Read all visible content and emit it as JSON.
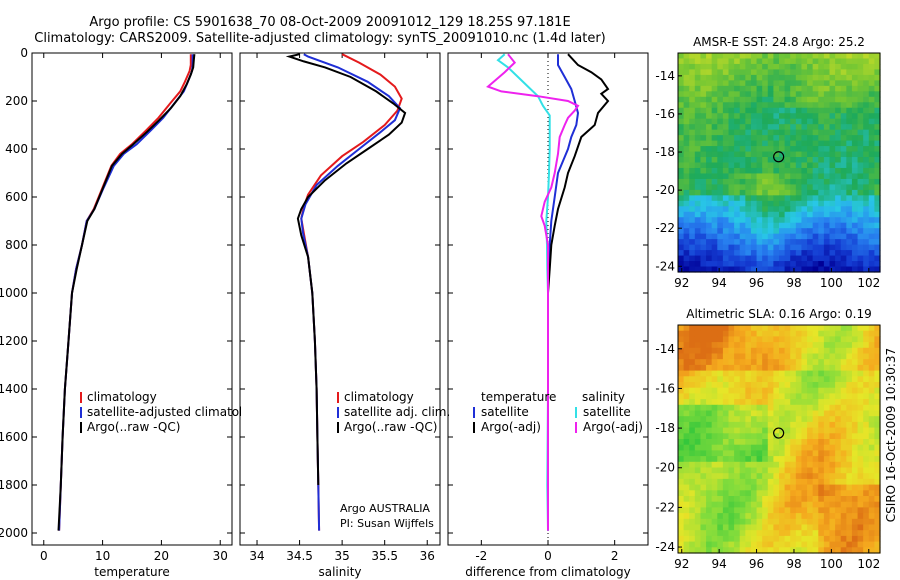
{
  "figure": {
    "title_line1": "Argo profile: CS 5901638_70 08-Oct-2009 20091012_129 18.25S 97.181E",
    "title_line2": "Climatology: CARS2009. Satellite-adjusted climatology: synTS_20091010.nc (1.4d later)",
    "credit": "CSIRO 16-Oct-2009 10:30:37",
    "attribution_line1": "Argo AUSTRALIA",
    "attribution_line2": "PI: Susan Wijffels"
  },
  "colors": {
    "climatology": "#e41a1c",
    "satellite": "#1f2fd6",
    "argo": "#000000",
    "satellite_salinity": "#33e0e6",
    "argo_salinity": "#ee22ee"
  },
  "chart_data": [
    {
      "id": "temperature",
      "type": "line",
      "xlabel": "temperature",
      "xlim": [
        -2,
        32
      ],
      "ylim": [
        0,
        2050
      ],
      "y_reversed": true,
      "xticks": [
        0,
        10,
        20,
        30
      ],
      "yticks": [
        0,
        200,
        400,
        600,
        800,
        1000,
        1200,
        1400,
        1600,
        1800,
        2000
      ],
      "legend": [
        "climatology",
        "satellite-adjusted climatology",
        "Argo(..raw -QC)"
      ],
      "series": [
        {
          "name": "climatology",
          "color": "#e41a1c",
          "points": [
            [
              25.0,
              5
            ],
            [
              25.0,
              50
            ],
            [
              24.8,
              75
            ],
            [
              24.0,
              120
            ],
            [
              23.2,
              160
            ],
            [
              21.5,
              210
            ],
            [
              19.5,
              270
            ],
            [
              17.5,
              320
            ],
            [
              15.0,
              380
            ],
            [
              13.0,
              420
            ],
            [
              11.5,
              470
            ],
            [
              10.0,
              560
            ],
            [
              8.5,
              650
            ],
            [
              7.3,
              700
            ],
            [
              6.5,
              800
            ],
            [
              5.5,
              900
            ],
            [
              4.8,
              1000
            ],
            [
              4.2,
              1200
            ],
            [
              3.6,
              1400
            ],
            [
              3.2,
              1600
            ],
            [
              2.9,
              1800
            ],
            [
              2.6,
              1990
            ]
          ]
        },
        {
          "name": "satellite-adjusted climatology",
          "color": "#1f2fd6",
          "points": [
            [
              25.3,
              5
            ],
            [
              25.3,
              50
            ],
            [
              25.2,
              75
            ],
            [
              24.5,
              120
            ],
            [
              23.8,
              160
            ],
            [
              22.2,
              210
            ],
            [
              20.3,
              270
            ],
            [
              18.3,
              320
            ],
            [
              15.8,
              380
            ],
            [
              13.6,
              420
            ],
            [
              11.9,
              470
            ],
            [
              10.2,
              560
            ],
            [
              8.6,
              650
            ],
            [
              7.3,
              700
            ],
            [
              6.5,
              800
            ],
            [
              5.5,
              900
            ],
            [
              4.8,
              1000
            ],
            [
              4.2,
              1200
            ],
            [
              3.6,
              1400
            ],
            [
              3.2,
              1600
            ],
            [
              2.9,
              1800
            ],
            [
              2.6,
              1990
            ]
          ]
        },
        {
          "name": "Argo(..raw -QC)",
          "color": "#000000",
          "points": [
            [
              25.6,
              5
            ],
            [
              25.5,
              30
            ],
            [
              25.4,
              60
            ],
            [
              25.0,
              90
            ],
            [
              24.3,
              130
            ],
            [
              23.2,
              180
            ],
            [
              21.6,
              230
            ],
            [
              19.6,
              280
            ],
            [
              17.5,
              330
            ],
            [
              15.0,
              385
            ],
            [
              13.3,
              420
            ],
            [
              11.6,
              470
            ],
            [
              10.1,
              560
            ],
            [
              8.6,
              650
            ],
            [
              7.4,
              700
            ],
            [
              6.5,
              800
            ],
            [
              5.6,
              900
            ],
            [
              4.8,
              1000
            ],
            [
              4.2,
              1200
            ],
            [
              3.6,
              1400
            ],
            [
              3.2,
              1600
            ],
            [
              2.9,
              1800
            ],
            [
              2.5,
              1990
            ]
          ]
        }
      ]
    },
    {
      "id": "salinity",
      "type": "line",
      "xlabel": "salinity",
      "xlim": [
        33.8,
        36.15
      ],
      "ylim": [
        0,
        2050
      ],
      "y_reversed": true,
      "xticks": [
        34,
        34.5,
        35,
        35.5,
        36
      ],
      "legend": [
        "climatology",
        "satellite adj. clim.",
        "Argo(..raw -QC)"
      ],
      "series": [
        {
          "name": "climatology",
          "color": "#e41a1c",
          "points": [
            [
              35.0,
              5
            ],
            [
              35.2,
              40
            ],
            [
              35.45,
              90
            ],
            [
              35.62,
              140
            ],
            [
              35.7,
              190
            ],
            [
              35.65,
              240
            ],
            [
              35.5,
              300
            ],
            [
              35.25,
              370
            ],
            [
              35.0,
              430
            ],
            [
              34.75,
              510
            ],
            [
              34.6,
              590
            ],
            [
              34.55,
              640
            ],
            [
              34.52,
              690
            ],
            [
              34.55,
              750
            ],
            [
              34.6,
              850
            ],
            [
              34.65,
              1000
            ],
            [
              34.68,
              1200
            ],
            [
              34.7,
              1400
            ],
            [
              34.71,
              1600
            ],
            [
              34.72,
              1800
            ],
            [
              34.73,
              1990
            ]
          ]
        },
        {
          "name": "satellite adj. clim.",
          "color": "#1f2fd6",
          "points": [
            [
              34.55,
              5
            ],
            [
              34.6,
              15
            ],
            [
              34.95,
              60
            ],
            [
              35.3,
              120
            ],
            [
              35.55,
              180
            ],
            [
              35.68,
              230
            ],
            [
              35.62,
              280
            ],
            [
              35.45,
              330
            ],
            [
              35.2,
              400
            ],
            [
              34.95,
              470
            ],
            [
              34.7,
              550
            ],
            [
              34.57,
              630
            ],
            [
              34.52,
              690
            ],
            [
              34.54,
              750
            ],
            [
              34.6,
              850
            ],
            [
              34.65,
              1000
            ],
            [
              34.68,
              1200
            ],
            [
              34.7,
              1400
            ],
            [
              34.71,
              1600
            ],
            [
              34.72,
              1800
            ],
            [
              34.73,
              1990
            ]
          ]
        },
        {
          "name": "Argo(..raw -QC)",
          "color": "#000000",
          "points": [
            [
              34.5,
              5
            ],
            [
              34.38,
              15
            ],
            [
              34.55,
              35
            ],
            [
              34.8,
              60
            ],
            [
              35.1,
              100
            ],
            [
              35.4,
              160
            ],
            [
              35.6,
              210
            ],
            [
              35.74,
              250
            ],
            [
              35.7,
              290
            ],
            [
              35.55,
              340
            ],
            [
              35.3,
              400
            ],
            [
              35.05,
              460
            ],
            [
              34.8,
              530
            ],
            [
              34.6,
              600
            ],
            [
              34.52,
              650
            ],
            [
              34.48,
              690
            ],
            [
              34.52,
              760
            ],
            [
              34.6,
              850
            ],
            [
              34.65,
              1000
            ],
            [
              34.68,
              1200
            ],
            [
              34.7,
              1400
            ],
            [
              34.71,
              1600
            ],
            [
              34.72,
              1800
            ]
          ]
        }
      ]
    },
    {
      "id": "difference",
      "type": "line",
      "xlabel": "difference from climatology",
      "xlim": [
        -3.0,
        3.0
      ],
      "ylim": [
        0,
        2050
      ],
      "y_reversed": true,
      "xticks": [
        -2,
        0,
        2
      ],
      "zero_line": 0,
      "legend_groups": [
        {
          "title": "temperature",
          "entries": [
            "satellite",
            "Argo(-adj)"
          ]
        },
        {
          "title": "salinity",
          "entries": [
            "satellite",
            "Argo(-adj)"
          ]
        }
      ],
      "series": [
        {
          "name": "satellite",
          "group": "temperature",
          "color": "#1f2fd6",
          "points": [
            [
              0.3,
              5
            ],
            [
              0.3,
              50
            ],
            [
              0.5,
              100
            ],
            [
              0.7,
              150
            ],
            [
              0.8,
              200
            ],
            [
              0.9,
              250
            ],
            [
              0.85,
              300
            ],
            [
              0.7,
              350
            ],
            [
              0.6,
              400
            ],
            [
              0.45,
              450
            ],
            [
              0.3,
              500
            ],
            [
              0.2,
              600
            ],
            [
              0.1,
              700
            ],
            [
              0.05,
              800
            ],
            [
              0.0,
              900
            ],
            [
              0.0,
              1000
            ],
            [
              0.0,
              1400
            ],
            [
              0.0,
              1800
            ],
            [
              0.0,
              1990
            ]
          ]
        },
        {
          "name": "Argo(-adj)",
          "group": "temperature",
          "color": "#000000",
          "points": [
            [
              0.6,
              5
            ],
            [
              0.9,
              50
            ],
            [
              1.3,
              80
            ],
            [
              1.6,
              110
            ],
            [
              1.8,
              150
            ],
            [
              1.6,
              170
            ],
            [
              1.8,
              200
            ],
            [
              1.5,
              250
            ],
            [
              1.4,
              300
            ],
            [
              1.0,
              350
            ],
            [
              0.8,
              430
            ],
            [
              0.6,
              500
            ],
            [
              0.5,
              560
            ],
            [
              0.3,
              650
            ],
            [
              0.2,
              720
            ],
            [
              0.1,
              800
            ],
            [
              0.05,
              900
            ],
            [
              0.0,
              1000
            ],
            [
              0.0,
              1400
            ],
            [
              0.0,
              1800
            ],
            [
              0.0,
              1990
            ]
          ]
        },
        {
          "name": "satellite",
          "group": "salinity",
          "color": "#33e0e6",
          "points": [
            [
              -1.3,
              5
            ],
            [
              -1.5,
              30
            ],
            [
              -1.2,
              60
            ],
            [
              -0.9,
              100
            ],
            [
              -0.6,
              140
            ],
            [
              -0.3,
              180
            ],
            [
              -0.15,
              220
            ],
            [
              0.05,
              260
            ],
            [
              0.05,
              300
            ],
            [
              0.05,
              400
            ],
            [
              0.03,
              500
            ],
            [
              0.0,
              600
            ],
            [
              -0.05,
              700
            ],
            [
              -0.03,
              800
            ],
            [
              -0.02,
              900
            ],
            [
              0.0,
              1000
            ],
            [
              0.0,
              1400
            ],
            [
              -0.02,
              1800
            ],
            [
              0.0,
              1990
            ]
          ]
        },
        {
          "name": "Argo(-adj)",
          "group": "salinity",
          "color": "#ee22ee",
          "points": [
            [
              -1.2,
              5
            ],
            [
              -1.0,
              40
            ],
            [
              -1.3,
              80
            ],
            [
              -1.8,
              140
            ],
            [
              -1.4,
              160
            ],
            [
              -0.3,
              180
            ],
            [
              0.6,
              200
            ],
            [
              0.9,
              220
            ],
            [
              0.8,
              240
            ],
            [
              0.6,
              270
            ],
            [
              0.5,
              300
            ],
            [
              0.35,
              350
            ],
            [
              0.3,
              420
            ],
            [
              0.2,
              500
            ],
            [
              0.1,
              560
            ],
            [
              -0.1,
              620
            ],
            [
              -0.2,
              680
            ],
            [
              -0.1,
              720
            ],
            [
              0.0,
              800
            ],
            [
              0.0,
              1000
            ],
            [
              0.0,
              1400
            ],
            [
              0.0,
              1800
            ],
            [
              0.0,
              1990
            ]
          ]
        }
      ]
    },
    {
      "id": "sst_map",
      "type": "heatmap",
      "title": "AMSR-E SST: 24.8 Argo: 25.2",
      "xlim": [
        91.8,
        102.6
      ],
      "ylim": [
        -24.3,
        -12.8
      ],
      "xticks": [
        92,
        94,
        96,
        98,
        100,
        102
      ],
      "yticks": [
        -14,
        -16,
        -18,
        -20,
        -22,
        -24
      ],
      "marker": [
        97.181,
        -18.25
      ]
    },
    {
      "id": "sla_map",
      "type": "heatmap",
      "title": "Altimetric SLA: 0.16 Argo: 0.19",
      "xlim": [
        91.8,
        102.6
      ],
      "ylim": [
        -24.3,
        -12.8
      ],
      "xticks": [
        92,
        94,
        96,
        98,
        100,
        102
      ],
      "yticks": [
        -14,
        -16,
        -18,
        -20,
        -22,
        -24
      ],
      "marker": [
        97.181,
        -18.25
      ]
    }
  ]
}
